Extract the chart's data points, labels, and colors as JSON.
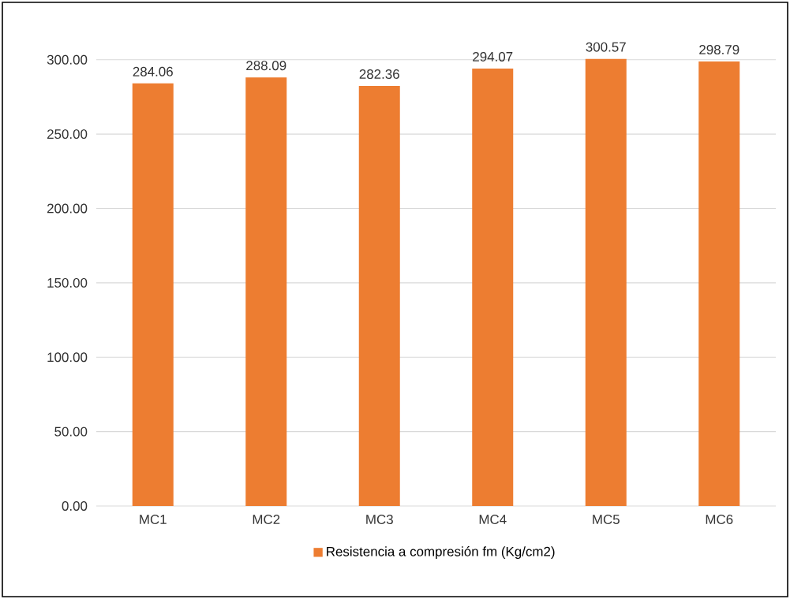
{
  "chart_data": {
    "type": "bar",
    "categories": [
      "MC1",
      "MC2",
      "MC3",
      "MC4",
      "MC5",
      "MC6"
    ],
    "series": [
      {
        "name": "Resistencia a compresión fm (Kg/cm2)",
        "color": "#ed7d31",
        "values": [
          284.06,
          288.09,
          282.36,
          294.07,
          300.57,
          298.79
        ]
      }
    ],
    "ylim": [
      0,
      302
    ],
    "yticks": [
      {
        "value": 0,
        "label": "0.00"
      },
      {
        "value": 50,
        "label": "50.00"
      },
      {
        "value": 100,
        "label": "100.00"
      },
      {
        "value": 150,
        "label": "150.00"
      },
      {
        "value": 200,
        "label": "200.00"
      },
      {
        "value": 250,
        "label": "250.00"
      },
      {
        "value": 300,
        "label": "300.00"
      }
    ],
    "grid": "y",
    "legend": "bottom",
    "data_labels": true
  }
}
